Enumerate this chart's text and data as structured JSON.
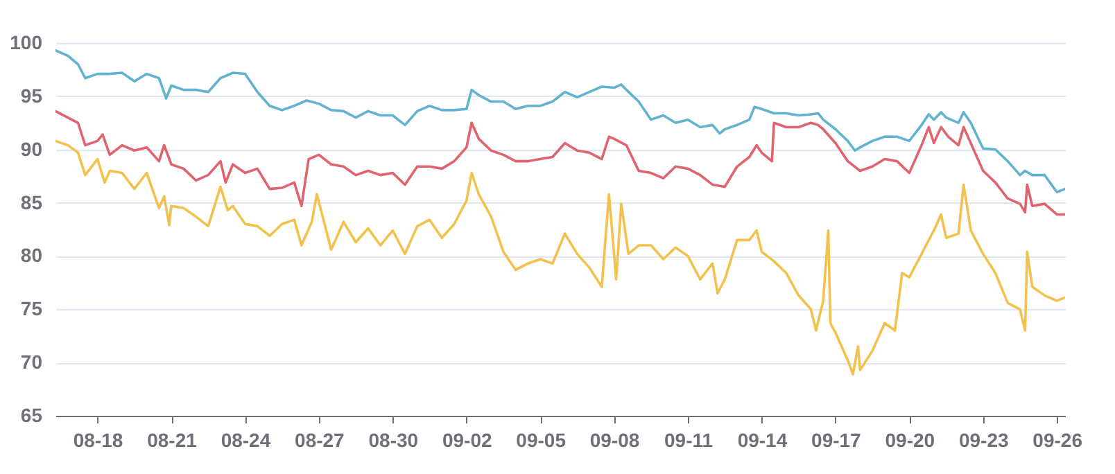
{
  "chart_data": {
    "type": "line",
    "grid": "y",
    "ylim": [
      65,
      100
    ],
    "yticks": [
      65,
      70,
      75,
      80,
      85,
      90,
      95,
      100
    ],
    "xlim": [
      "--08-16T07:00",
      "--09-26T08:00"
    ],
    "xticks": [
      {
        "value": "--08-18",
        "label": "08-18"
      },
      {
        "value": "--08-21",
        "label": "08-21"
      },
      {
        "value": "--08-24",
        "label": "08-24"
      },
      {
        "value": "--08-27",
        "label": "08-27"
      },
      {
        "value": "--08-30",
        "label": "08-30"
      },
      {
        "value": "--09-02",
        "label": "09-02"
      },
      {
        "value": "--09-05",
        "label": "09-05"
      },
      {
        "value": "--09-08",
        "label": "09-08"
      },
      {
        "value": "--09-11",
        "label": "09-11"
      },
      {
        "value": "--09-14",
        "label": "09-14"
      },
      {
        "value": "--09-17",
        "label": "09-17"
      },
      {
        "value": "--09-20",
        "label": "09-20"
      },
      {
        "value": "--09-23",
        "label": "09-23"
      },
      {
        "value": "--09-26",
        "label": "09-26"
      }
    ],
    "series": [
      {
        "color": "#63b2cf",
        "x": [
          "--08-16T07:00",
          "--08-16T19:00",
          "--08-17T05:00",
          "--08-17T12:00",
          "--08-18T00:00",
          "--08-18T12:00",
          "--08-19T00:00",
          "--08-19T12:00",
          "--08-20T00:00",
          "--08-20T12:00",
          "--08-20T19:00",
          "--08-21T00:00",
          "--08-21T12:00",
          "--08-22T00:00",
          "--08-22T12:00",
          "--08-23T00:00",
          "--08-23T12:00",
          "--08-24T00:00",
          "--08-24T12:00",
          "--08-25T00:00",
          "--08-25T12:00",
          "--08-26T00:00",
          "--08-26T12:00",
          "--08-27T00:00",
          "--08-27T12:00",
          "--08-28T00:00",
          "--08-28T12:00",
          "--08-29T00:00",
          "--08-29T12:00",
          "--08-30T00:00",
          "--08-30T12:00",
          "--08-31T00:00",
          "--08-31T12:00",
          "--09-01T00:00",
          "--09-01T12:00",
          "--09-02T00:00",
          "--09-02T05:00",
          "--09-02T12:00",
          "--09-03T00:00",
          "--09-03T12:00",
          "--09-04T00:00",
          "--09-04T12:00",
          "--09-05T00:00",
          "--09-05T12:00",
          "--09-06T00:00",
          "--09-06T12:00",
          "--09-07T00:00",
          "--09-07T12:00",
          "--09-08T00:00",
          "--09-08T07:00",
          "--09-08T12:00",
          "--09-09T00:00",
          "--09-09T12:00",
          "--09-10T00:00",
          "--09-10T12:00",
          "--09-11T00:00",
          "--09-11T12:00",
          "--09-12T00:00",
          "--09-12T07:00",
          "--09-12T12:00",
          "--09-13T00:00",
          "--09-13T12:00",
          "--09-13T17:00",
          "--09-14T00:00",
          "--09-14T12:00",
          "--09-15T00:00",
          "--09-15T12:00",
          "--09-16T00:00",
          "--09-16T07:00",
          "--09-16T12:00",
          "--09-17T00:00",
          "--09-17T12:00",
          "--09-17T19:00",
          "--09-18T00:00",
          "--09-18T12:00",
          "--09-19T00:00",
          "--09-19T12:00",
          "--09-20T00:00",
          "--09-20T12:00",
          "--09-20T19:00",
          "--09-21T00:00",
          "--09-21T07:00",
          "--09-21T12:00",
          "--09-22T00:00",
          "--09-22T05:00",
          "--09-22T12:00",
          "--09-23T00:00",
          "--09-23T12:00",
          "--09-24T00:00",
          "--09-24T12:00",
          "--09-24T17:00",
          "--09-25T00:00",
          "--09-25T12:00",
          "--09-26T00:00",
          "--09-26T08:00"
        ],
        "values": [
          99.3,
          98.8,
          98.0,
          96.7,
          97.1,
          97.1,
          97.2,
          96.4,
          97.1,
          96.7,
          94.8,
          96.0,
          95.6,
          95.6,
          95.4,
          96.7,
          97.2,
          97.1,
          95.4,
          94.1,
          93.7,
          94.1,
          94.6,
          94.3,
          93.7,
          93.6,
          93.0,
          93.6,
          93.2,
          93.2,
          92.3,
          93.6,
          94.1,
          93.7,
          93.7,
          93.8,
          95.6,
          95.1,
          94.5,
          94.5,
          93.8,
          94.1,
          94.1,
          94.5,
          95.4,
          94.9,
          95.4,
          95.9,
          95.8,
          96.1,
          95.6,
          94.5,
          92.8,
          93.2,
          92.5,
          92.8,
          92.1,
          92.3,
          91.5,
          91.9,
          92.3,
          92.8,
          94.0,
          93.8,
          93.4,
          93.4,
          93.2,
          93.3,
          93.4,
          92.8,
          91.9,
          90.8,
          89.9,
          90.2,
          90.8,
          91.2,
          91.2,
          90.8,
          92.3,
          93.3,
          92.8,
          93.5,
          93.0,
          92.5,
          93.5,
          92.5,
          90.1,
          90.0,
          88.9,
          87.6,
          88.0,
          87.6,
          87.6,
          86.0,
          86.3
        ]
      },
      {
        "color": "#e0646e",
        "x": [
          "--08-16T07:00",
          "--08-16T19:00",
          "--08-17T05:00",
          "--08-17T12:00",
          "--08-18T00:00",
          "--08-18T05:00",
          "--08-18T12:00",
          "--08-19T00:00",
          "--08-19T12:00",
          "--08-20T00:00",
          "--08-20T12:00",
          "--08-20T17:00",
          "--08-21T00:00",
          "--08-21T12:00",
          "--08-22T00:00",
          "--08-22T12:00",
          "--08-23T00:00",
          "--08-23T05:00",
          "--08-23T12:00",
          "--08-24T00:00",
          "--08-24T12:00",
          "--08-25T00:00",
          "--08-25T12:00",
          "--08-26T00:00",
          "--08-26T07:00",
          "--08-26T14:00",
          "--08-27T00:00",
          "--08-27T12:00",
          "--08-28T00:00",
          "--08-28T12:00",
          "--08-29T00:00",
          "--08-29T12:00",
          "--08-30T00:00",
          "--08-30T12:00",
          "--08-31T00:00",
          "--08-31T12:00",
          "--09-01T00:00",
          "--09-01T12:00",
          "--09-02T00:00",
          "--09-02T05:00",
          "--09-02T12:00",
          "--09-03T00:00",
          "--09-03T12:00",
          "--09-04T00:00",
          "--09-04T12:00",
          "--09-05T00:00",
          "--09-05T12:00",
          "--09-06T00:00",
          "--09-06T12:00",
          "--09-07T00:00",
          "--09-07T12:00",
          "--09-07T19:00",
          "--09-08T00:00",
          "--09-08T12:00",
          "--09-09T00:00",
          "--09-09T12:00",
          "--09-10T00:00",
          "--09-10T12:00",
          "--09-11T00:00",
          "--09-11T12:00",
          "--09-12T00:00",
          "--09-12T12:00",
          "--09-13T00:00",
          "--09-13T12:00",
          "--09-13T19:00",
          "--09-14T00:00",
          "--09-14T10:00",
          "--09-14T12:00",
          "--09-15T00:00",
          "--09-15T12:00",
          "--09-16T00:00",
          "--09-16T07:00",
          "--09-16T12:00",
          "--09-17T00:00",
          "--09-17T12:00",
          "--09-18T00:00",
          "--09-18T12:00",
          "--09-19T00:00",
          "--09-19T12:00",
          "--09-20T00:00",
          "--09-20T12:00",
          "--09-20T19:00",
          "--09-21T00:00",
          "--09-21T07:00",
          "--09-21T14:00",
          "--09-22T00:00",
          "--09-22T05:00",
          "--09-22T12:00",
          "--09-23T00:00",
          "--09-23T12:00",
          "--09-24T00:00",
          "--09-24T12:00",
          "--09-24T17:00",
          "--09-24T19:00",
          "--09-25T00:00",
          "--09-25T12:00",
          "--09-26T00:00",
          "--09-26T08:00"
        ],
        "values": [
          93.6,
          93.0,
          92.5,
          90.4,
          90.8,
          91.4,
          89.5,
          90.4,
          89.9,
          90.2,
          88.9,
          90.4,
          88.6,
          88.2,
          87.1,
          87.6,
          88.9,
          86.9,
          88.6,
          87.8,
          88.2,
          86.3,
          86.4,
          86.9,
          84.7,
          89.1,
          89.5,
          88.6,
          88.4,
          87.6,
          88.0,
          87.6,
          87.8,
          86.7,
          88.4,
          88.4,
          88.2,
          88.9,
          90.2,
          92.5,
          91.0,
          89.9,
          89.5,
          88.9,
          88.9,
          89.1,
          89.3,
          90.6,
          89.9,
          89.7,
          89.1,
          91.2,
          91.0,
          90.4,
          88.0,
          87.8,
          87.3,
          88.4,
          88.2,
          87.6,
          86.7,
          86.5,
          88.4,
          89.3,
          90.4,
          89.7,
          88.9,
          92.5,
          92.1,
          92.1,
          92.5,
          92.3,
          91.9,
          90.6,
          88.9,
          88.0,
          88.4,
          89.1,
          88.9,
          87.8,
          90.4,
          92.1,
          90.6,
          92.1,
          91.2,
          90.4,
          92.1,
          90.6,
          88.0,
          86.9,
          85.4,
          84.9,
          84.1,
          86.7,
          84.7,
          84.9,
          83.9,
          83.9
        ]
      },
      {
        "color": "#f2c14e",
        "x": [
          "--08-16T07:00",
          "--08-16T19:00",
          "--08-17T05:00",
          "--08-17T12:00",
          "--08-18T00:00",
          "--08-18T07:00",
          "--08-18T12:00",
          "--08-19T00:00",
          "--08-19T12:00",
          "--08-20T00:00",
          "--08-20T12:00",
          "--08-20T17:00",
          "--08-20T22:00",
          "--08-21T00:00",
          "--08-21T12:00",
          "--08-22T00:00",
          "--08-22T12:00",
          "--08-23T00:00",
          "--08-23T07:00",
          "--08-23T12:00",
          "--08-24T00:00",
          "--08-24T12:00",
          "--08-25T00:00",
          "--08-25T12:00",
          "--08-26T00:00",
          "--08-26T07:00",
          "--08-26T17:00",
          "--08-26T22:00",
          "--08-27T05:00",
          "--08-27T12:00",
          "--08-28T00:00",
          "--08-28T12:00",
          "--08-29T00:00",
          "--08-29T12:00",
          "--08-30T00:00",
          "--08-30T12:00",
          "--08-31T00:00",
          "--08-31T12:00",
          "--09-01T00:00",
          "--09-01T12:00",
          "--09-02T00:00",
          "--09-02T05:00",
          "--09-02T12:00",
          "--09-03T00:00",
          "--09-03T12:00",
          "--09-04T00:00",
          "--09-04T12:00",
          "--09-05T00:00",
          "--09-05T12:00",
          "--09-06T00:00",
          "--09-06T12:00",
          "--09-07T00:00",
          "--09-07T12:00",
          "--09-07T19:00",
          "--09-08T00:00",
          "--09-08T02:00",
          "--09-08T07:00",
          "--09-08T14:00",
          "--09-09T00:00",
          "--09-09T12:00",
          "--09-10T00:00",
          "--09-10T12:00",
          "--09-11T00:00",
          "--09-11T12:00",
          "--09-12T00:00",
          "--09-12T05:00",
          "--09-12T12:00",
          "--09-13T00:00",
          "--09-13T12:00",
          "--09-13T19:00",
          "--09-14T00:00",
          "--09-14T12:00",
          "--09-15T00:00",
          "--09-15T12:00",
          "--09-16T00:00",
          "--09-16T05:00",
          "--09-16T12:00",
          "--09-16T17:00",
          "--09-16T19:00",
          "--09-17T00:00",
          "--09-17T12:00",
          "--09-17T17:00",
          "--09-17T22:00",
          "--09-18T00:00",
          "--09-18T12:00",
          "--09-19T00:00",
          "--09-19T10:00",
          "--09-19T17:00",
          "--09-20T00:00",
          "--09-20T12:00",
          "--09-21T00:00",
          "--09-21T07:00",
          "--09-21T12:00",
          "--09-22T00:00",
          "--09-22T05:00",
          "--09-22T12:00",
          "--09-23T00:00",
          "--09-23T12:00",
          "--09-24T00:00",
          "--09-24T12:00",
          "--09-24T17:00",
          "--09-24T19:00",
          "--09-25T00:00",
          "--09-25T12:00",
          "--09-26T00:00",
          "--09-26T08:00"
        ],
        "values": [
          90.8,
          90.4,
          89.7,
          87.6,
          89.1,
          86.9,
          88.0,
          87.8,
          86.3,
          87.8,
          84.5,
          85.6,
          82.9,
          84.7,
          84.5,
          83.7,
          82.8,
          86.5,
          84.3,
          84.7,
          83.0,
          82.8,
          81.9,
          83.0,
          83.4,
          81.0,
          83.2,
          85.8,
          83.2,
          80.6,
          83.2,
          81.3,
          82.6,
          81.0,
          82.4,
          80.2,
          82.8,
          83.4,
          81.7,
          83.0,
          85.2,
          87.8,
          85.8,
          83.7,
          80.4,
          78.7,
          79.3,
          79.7,
          79.3,
          82.1,
          80.2,
          78.9,
          77.1,
          85.8,
          80.2,
          77.8,
          84.9,
          80.2,
          81.0,
          81.0,
          79.7,
          80.8,
          80.0,
          77.8,
          79.3,
          76.5,
          77.8,
          81.5,
          81.5,
          82.4,
          80.4,
          79.5,
          78.4,
          76.3,
          75.0,
          73.0,
          75.8,
          82.4,
          73.7,
          72.8,
          70.2,
          68.9,
          71.5,
          69.3,
          71.1,
          73.7,
          73.0,
          78.4,
          78.0,
          80.2,
          82.4,
          83.9,
          81.7,
          82.1,
          86.7,
          82.4,
          80.2,
          78.4,
          75.6,
          75.0,
          73.0,
          80.4,
          77.1,
          76.3,
          75.8,
          76.1
        ]
      }
    ]
  }
}
